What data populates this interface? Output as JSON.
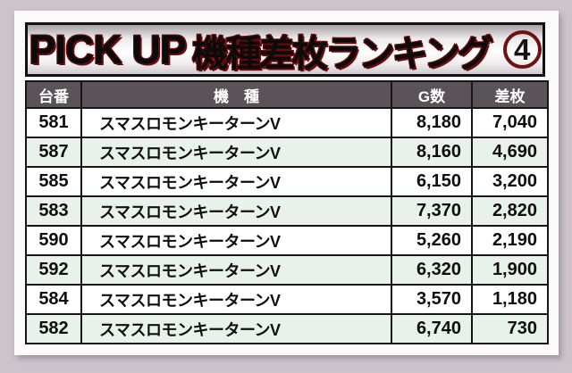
{
  "title": {
    "prefix": "PICK UP",
    "main": "機種差枚ランキング",
    "badge_digit": "4"
  },
  "colors": {
    "page_bg": "#cdc3cb",
    "card_bg": "#fcfbfc",
    "header_bg": "#5a5458",
    "stripe": "#e9f1ec",
    "badge_ring": "#6d1013",
    "title_shadow": "#6e0a0d"
  },
  "table": {
    "headers": {
      "no": "台番",
      "model": "機　種",
      "g": "G数",
      "diff": "差枚"
    },
    "rows": [
      {
        "no": "581",
        "model": "スマスロモンキーターンV",
        "g": "8,180",
        "diff": "7,040"
      },
      {
        "no": "587",
        "model": "スマスロモンキーターンV",
        "g": "8,160",
        "diff": "4,690"
      },
      {
        "no": "585",
        "model": "スマスロモンキーターンV",
        "g": "6,150",
        "diff": "3,200"
      },
      {
        "no": "583",
        "model": "スマスロモンキーターンV",
        "g": "7,370",
        "diff": "2,820"
      },
      {
        "no": "590",
        "model": "スマスロモンキーターンV",
        "g": "5,260",
        "diff": "2,190"
      },
      {
        "no": "592",
        "model": "スマスロモンキーターンV",
        "g": "6,320",
        "diff": "1,900"
      },
      {
        "no": "584",
        "model": "スマスロモンキーターンV",
        "g": "3,570",
        "diff": "1,180"
      },
      {
        "no": "582",
        "model": "スマスロモンキーターンV",
        "g": "6,740",
        "diff": "730"
      }
    ]
  }
}
